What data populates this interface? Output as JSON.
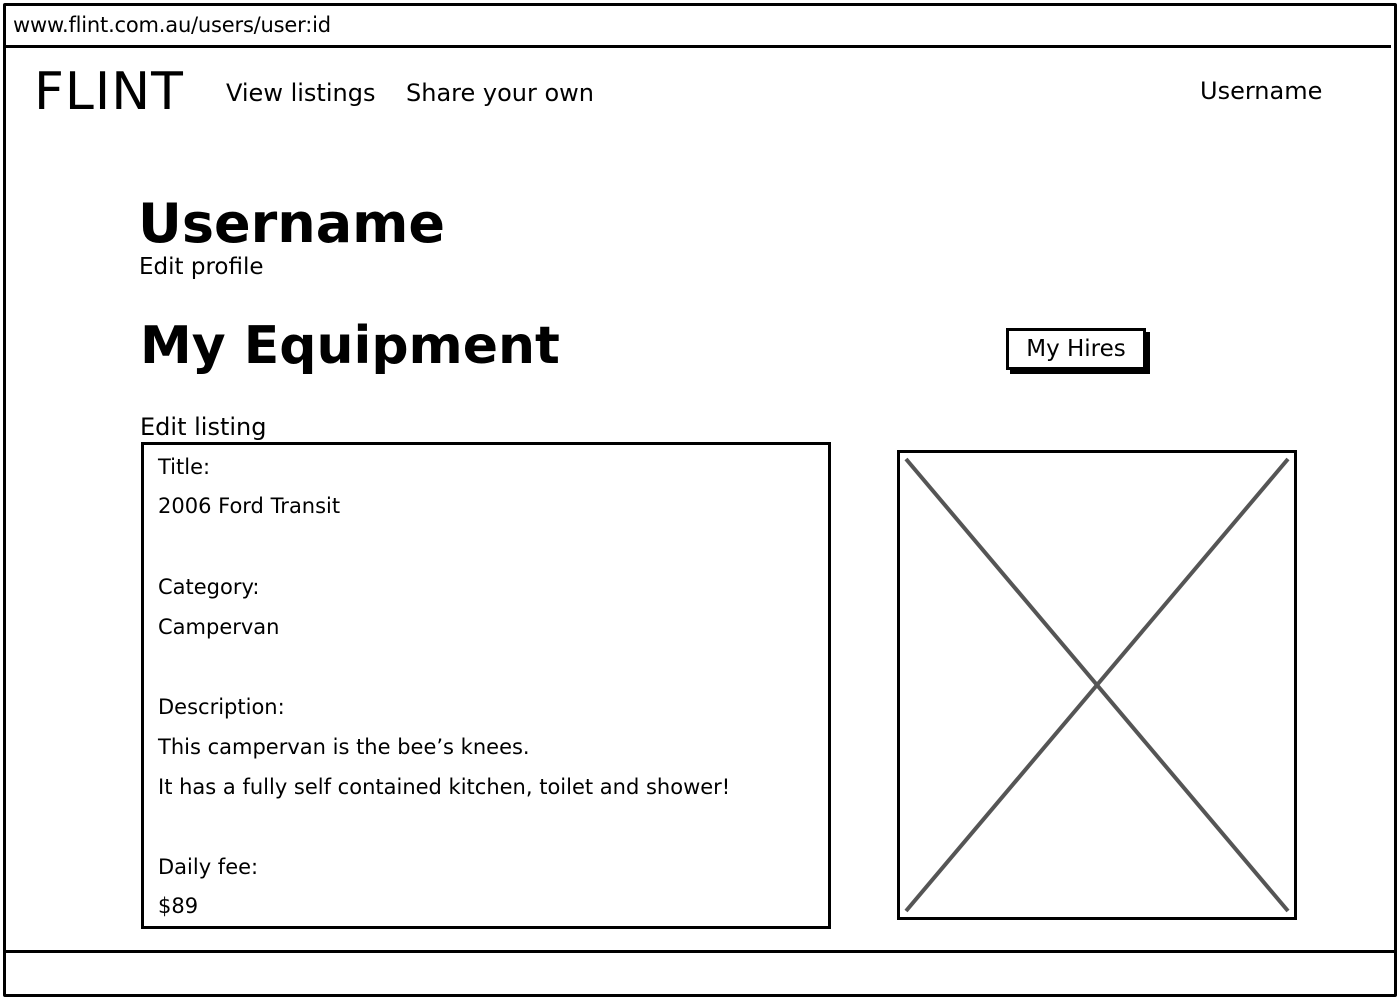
{
  "browser": {
    "url": "www.flint.com.au/users/user:id"
  },
  "header": {
    "logo": "FLINT",
    "nav": {
      "view_listings": "View listings",
      "share_your_own": "Share your own"
    },
    "username": "Username"
  },
  "profile": {
    "name": "Username",
    "edit_link": "Edit profile"
  },
  "equipment": {
    "section_title": "My Equipment",
    "my_hires_button": "My Hires",
    "edit_listing_link": "Edit listing",
    "listing": {
      "title_label": "Title:",
      "title_value": "2006 Ford Transit",
      "category_label": "Category:",
      "category_value": "Campervan",
      "description_label": "Description:",
      "description_line1": "This campervan is the bee’s knees.",
      "description_line2": "It has a fully self contained kitchen, toilet and shower!",
      "fee_label": "Daily fee:",
      "fee_value": "$89"
    },
    "image_placeholder_icon": "image-placeholder-icon"
  },
  "colors": {
    "stroke": "#000000",
    "placeholder_cross": "#555555",
    "background": "#ffffff"
  }
}
